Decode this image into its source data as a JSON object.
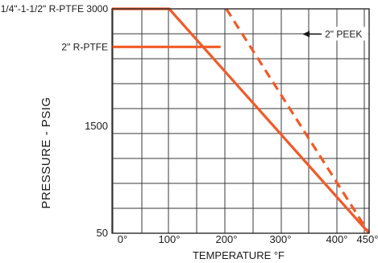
{
  "chart_data": {
    "type": "line",
    "title": "",
    "xlabel": "TEMPERATURE °F",
    "ylabel": "PRESSURE - PSIG",
    "xlim": [
      0,
      450
    ],
    "ylim": [
      50,
      3000
    ],
    "grid": true,
    "x_tick_labels": [
      "0°",
      "100°",
      "200°",
      "300°",
      "400°",
      "450°"
    ],
    "y_tick_labels": [
      "1/4\"-1-1/2\" R-PTFE 3000",
      "2\" R-PTFE",
      "1500",
      "50"
    ],
    "series": [
      {
        "name": "1/4\"-1-1/2\" R-PTFE",
        "style": "solid",
        "color": "#f05a28",
        "x": [
          0,
          100,
          450
        ],
        "y": [
          3000,
          3000,
          50
        ]
      },
      {
        "name": "2\" R-PTFE",
        "style": "solid",
        "color": "#f05a28",
        "x": [
          0,
          190
        ],
        "y": [
          2500,
          2500
        ]
      },
      {
        "name": "2\" PEEK",
        "style": "dashed",
        "color": "#f05a28",
        "x": [
          200,
          450
        ],
        "y": [
          3000,
          50
        ]
      }
    ],
    "annotations": [
      {
        "text": "2\" PEEK",
        "arrow_to_x": 240,
        "arrow_to_y": 2700
      }
    ]
  }
}
